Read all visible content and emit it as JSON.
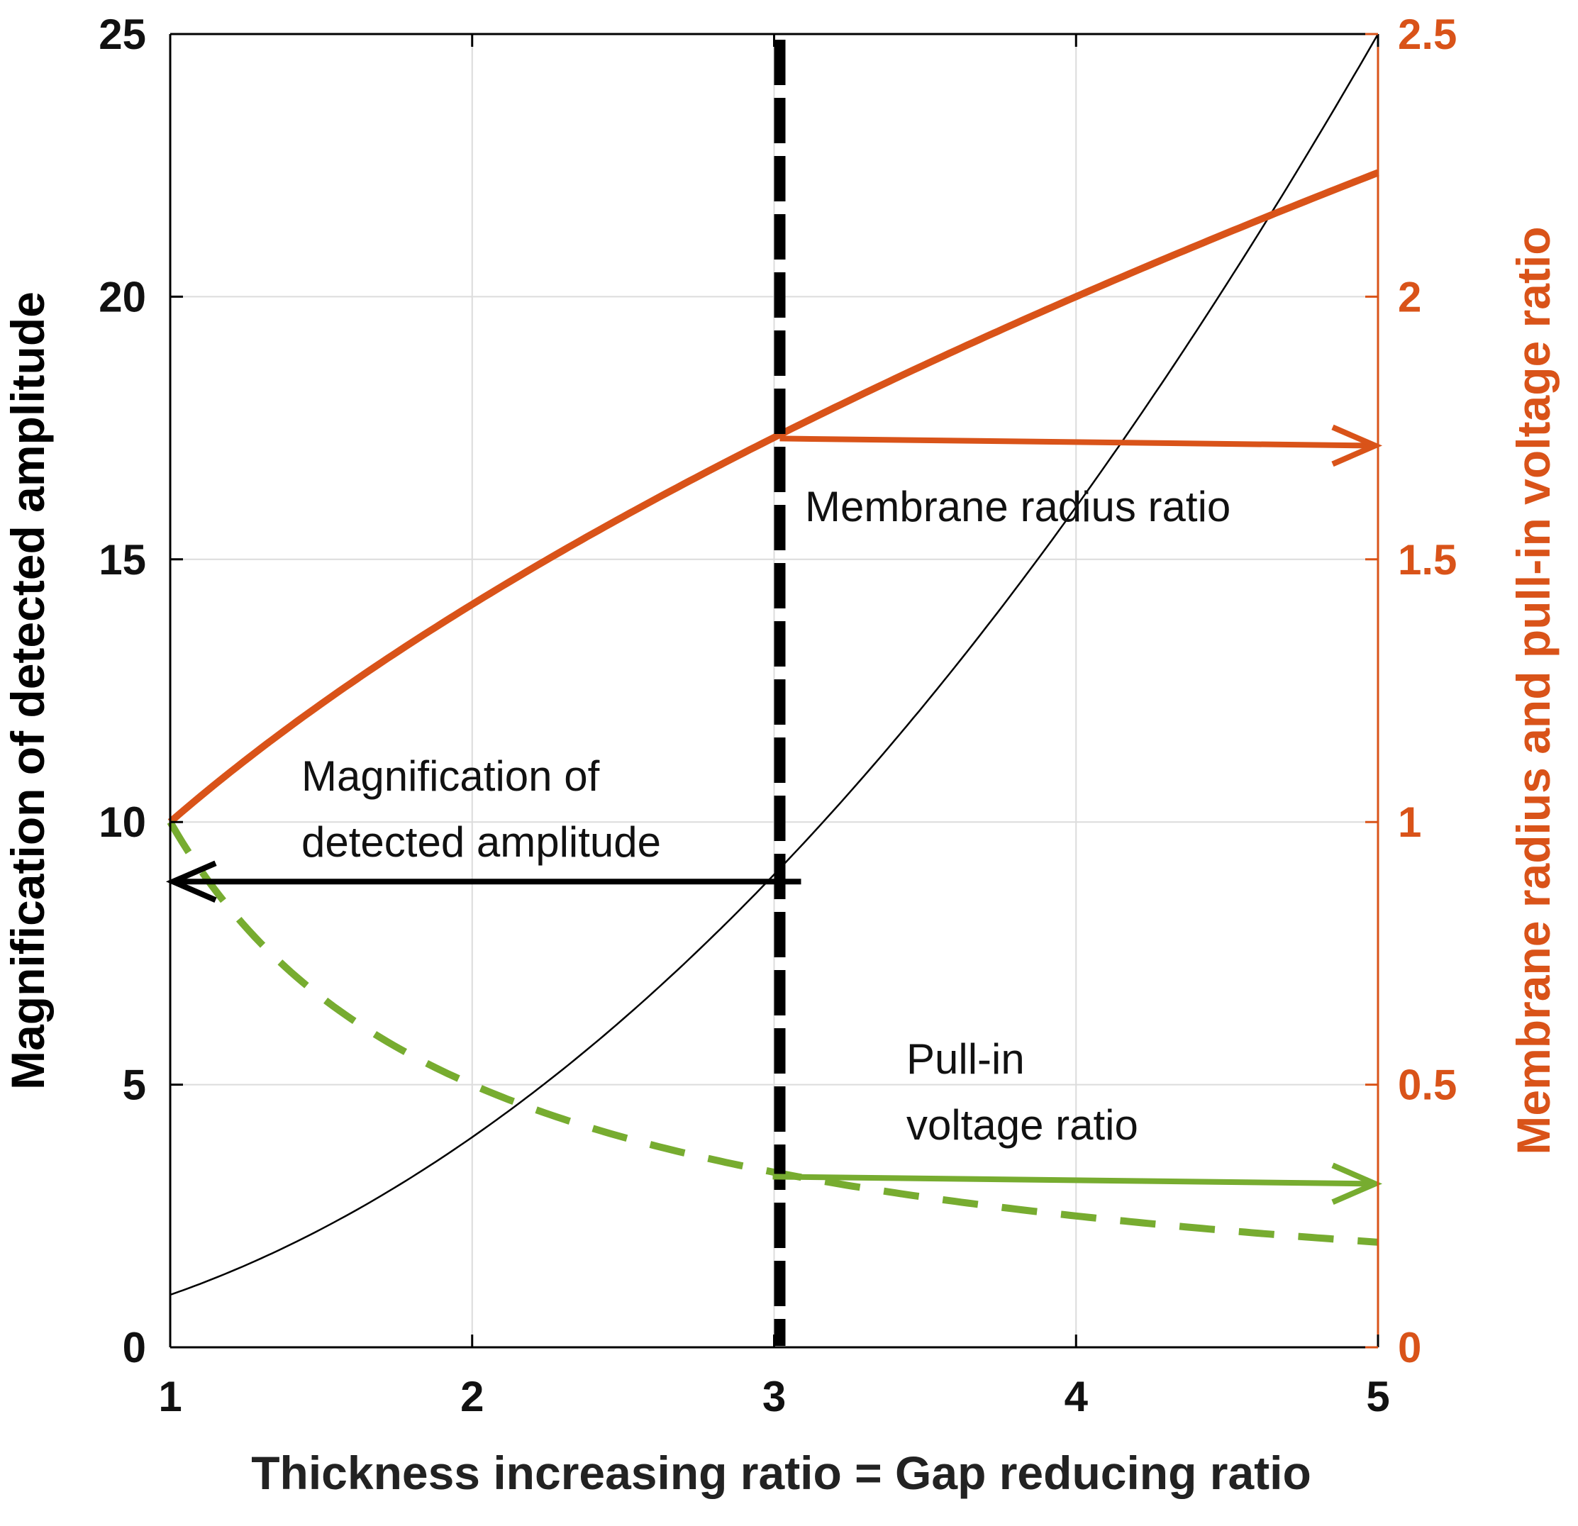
{
  "chart_data": {
    "type": "line",
    "x": [
      1,
      1.5,
      2,
      2.5,
      3,
      3.5,
      4,
      4.5,
      5
    ],
    "xlim": [
      1,
      5
    ],
    "xticks": [
      1,
      2,
      3,
      4,
      5
    ],
    "xlabel": "Thickness increasing ratio = Gap reducing ratio",
    "ylim_left": [
      0,
      25
    ],
    "yticks_left": [
      0,
      5,
      10,
      15,
      20,
      25
    ],
    "ylabel_left": "Magnification of detected amplitude",
    "ylim_right": [
      0,
      2.5
    ],
    "yticks_right": [
      "0",
      "0.5",
      "1",
      "1.5",
      "2",
      "2.5"
    ],
    "ylabel_right": "Membrane radius and pull-in voltage ratio",
    "grid": true,
    "series": [
      {
        "name": "Magnification of detected amplitude",
        "axis": "left",
        "color": "#000000",
        "style": "solid-thin",
        "values": [
          1,
          2.25,
          4,
          6.25,
          9,
          12.25,
          16,
          20.25,
          25
        ]
      },
      {
        "name": "Membrane radius ratio",
        "axis": "right",
        "color": "#d95319",
        "style": "solid-thick",
        "values": [
          1,
          1.22,
          1.41,
          1.58,
          1.73,
          1.87,
          2.0,
          2.12,
          2.24
        ]
      },
      {
        "name": "Pull-in voltage ratio",
        "axis": "right",
        "color": "#77ac30",
        "style": "dashed",
        "values": [
          1,
          0.667,
          0.5,
          0.4,
          0.333,
          0.286,
          0.25,
          0.222,
          0.2
        ]
      }
    ],
    "marker_x": 3,
    "annotations": [
      {
        "name": "membrane",
        "lines": [
          "Membrane radius ratio"
        ],
        "color": "#d95319",
        "arrow_y": 1.73,
        "direction": "right"
      },
      {
        "name": "magnification",
        "lines": [
          "Magnification of",
          "detected amplitude"
        ],
        "color": "#000000",
        "arrow_y": 9,
        "direction": "left"
      },
      {
        "name": "pullin",
        "lines": [
          "Pull-in",
          "voltage ratio"
        ],
        "color": "#77ac30",
        "arrow_y": 0.333,
        "direction": "right"
      }
    ]
  }
}
